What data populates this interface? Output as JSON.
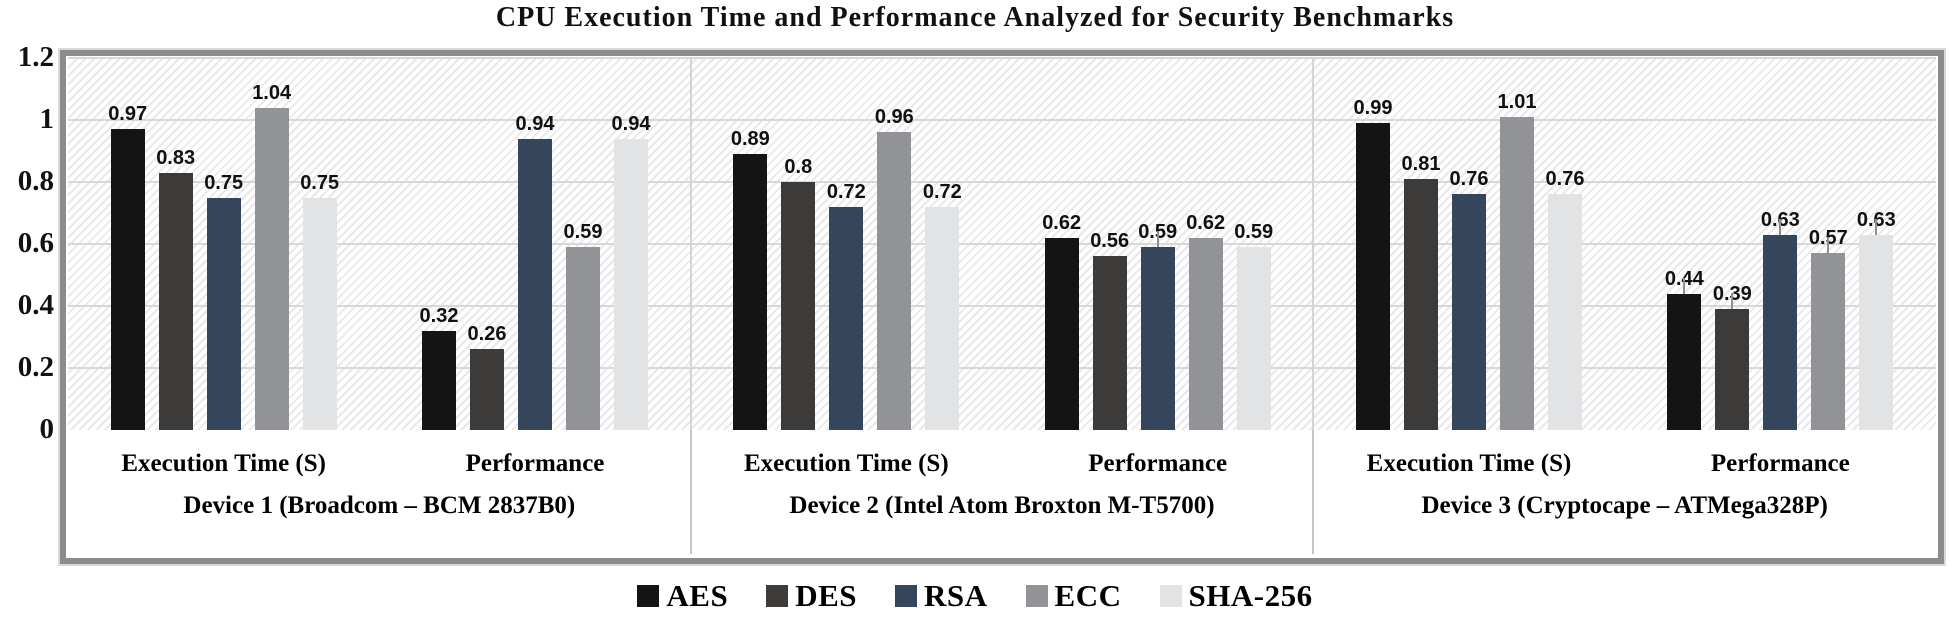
{
  "title": "CPU Execution Time and Performance Analyzed for Security Benchmarks",
  "chart_data": {
    "type": "bar",
    "title": "CPU Execution Time and Performance Analyzed for Security Benchmarks",
    "ylim": [
      0,
      1.2
    ],
    "ytick_labels": [
      "0",
      "0.2",
      "0.4",
      "0.6",
      "0.8",
      "1",
      "1.2"
    ],
    "grid": "on",
    "legend_position": "bottom",
    "plot_background": "diagonal-hatch",
    "group_labels": [
      "Execution Time (S)",
      "Performance",
      "Execution Time (S)",
      "Performance",
      "Execution Time (S)",
      "Performance"
    ],
    "device_labels": [
      "Device 1 (Broadcom – BCM 2837B0)",
      "Device 2 (Intel Atom Broxton M-T5700)",
      "Device 3 (Cryptocape – ATMega328P)"
    ],
    "series": [
      {
        "name": "AES",
        "color": "#141414",
        "values": [
          0.97,
          0.32,
          0.89,
          0.62,
          0.99,
          0.44
        ]
      },
      {
        "name": "DES",
        "color": "#3d3b39",
        "values": [
          0.83,
          0.26,
          0.8,
          0.56,
          0.81,
          0.39
        ]
      },
      {
        "name": "RSA",
        "color": "#35455c",
        "values": [
          0.75,
          0.94,
          0.72,
          0.59,
          0.76,
          0.63
        ]
      },
      {
        "name": "ECC",
        "color": "#919396",
        "values": [
          1.04,
          0.59,
          0.96,
          0.62,
          1.01,
          0.57
        ]
      },
      {
        "name": "SHA-256",
        "color": "#e2e3e5",
        "values": [
          0.75,
          0.94,
          0.72,
          0.59,
          0.76,
          0.63
        ]
      }
    ],
    "error_whiskers": [
      [
        3,
        2
      ],
      [
        5,
        0
      ],
      [
        5,
        1
      ],
      [
        5,
        2
      ],
      [
        5,
        3
      ],
      [
        5,
        4
      ]
    ]
  }
}
